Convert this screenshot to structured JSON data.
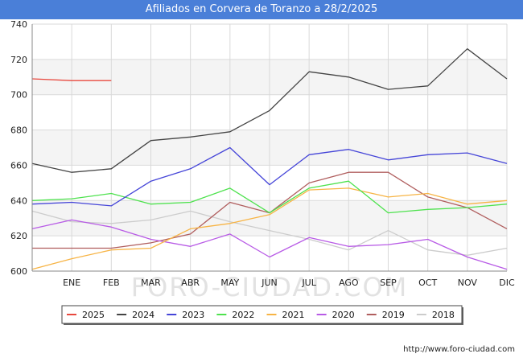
{
  "chart_data": {
    "type": "line",
    "title": "Afiliados en Corvera de Toranzo a 28/2/2025",
    "categories": [
      "",
      "ENE",
      "FEB",
      "MAR",
      "ABR",
      "MAY",
      "JUN",
      "JUL",
      "AGO",
      "SEP",
      "OCT",
      "NOV",
      "DIC"
    ],
    "ylim": [
      600,
      740
    ],
    "yticks": [
      600,
      620,
      640,
      660,
      680,
      700,
      720,
      740
    ],
    "grid": true,
    "legend_position": "bottom",
    "series": [
      {
        "name": "2025",
        "color": "#e8483e",
        "values": [
          709,
          708,
          708,
          null,
          null,
          null,
          null,
          null,
          null,
          null,
          null,
          null,
          null
        ]
      },
      {
        "name": "2024",
        "color": "#444444",
        "values": [
          661,
          656,
          658,
          674,
          676,
          679,
          691,
          713,
          710,
          703,
          705,
          726,
          709
        ]
      },
      {
        "name": "2023",
        "color": "#4545d8",
        "values": [
          638,
          639,
          637,
          651,
          658,
          670,
          649,
          666,
          669,
          663,
          666,
          667,
          661
        ]
      },
      {
        "name": "2022",
        "color": "#4ee24e",
        "values": [
          640,
          641,
          644,
          638,
          639,
          647,
          633,
          647,
          651,
          633,
          635,
          636,
          638
        ]
      },
      {
        "name": "2021",
        "color": "#f7b445",
        "values": [
          601,
          607,
          612,
          613,
          624,
          627,
          632,
          646,
          647,
          642,
          644,
          638,
          640
        ]
      },
      {
        "name": "2020",
        "color": "#b85be6",
        "values": [
          624,
          629,
          625,
          618,
          614,
          621,
          608,
          619,
          614,
          615,
          618,
          608,
          601
        ]
      },
      {
        "name": "2019",
        "color": "#b05e5e",
        "values": [
          613,
          613,
          613,
          616,
          621,
          639,
          633,
          650,
          656,
          656,
          642,
          636,
          624
        ]
      },
      {
        "name": "2018",
        "color": "#cccccc",
        "values": [
          634,
          628,
          627,
          629,
          634,
          628,
          623,
          618,
          612,
          623,
          612,
          609,
          613
        ]
      }
    ]
  },
  "watermark": "FORO-CIUDAD.COM",
  "source": "http://www.foro-ciudad.com"
}
